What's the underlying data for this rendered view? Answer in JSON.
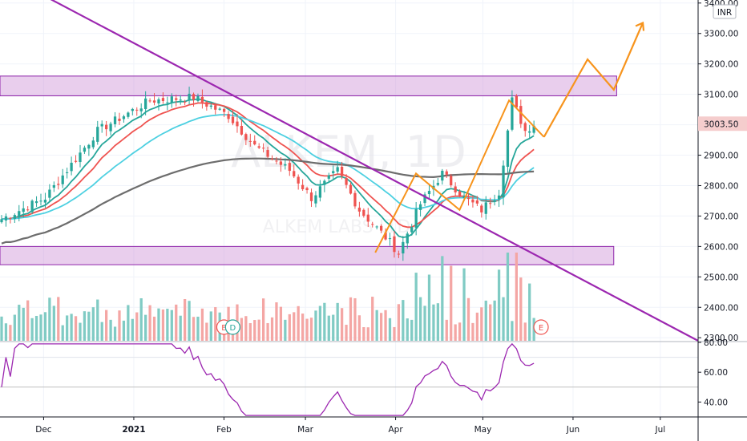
{
  "chart_data": {
    "type": "candlestick",
    "watermark": "ALKEM, 1D",
    "watermark_sub": "ALKEM LABS LTD",
    "currency": "INR",
    "last_price": "3003.50",
    "last_price_value": 3003.5,
    "price_axis": {
      "ylim": [
        2290,
        3410
      ],
      "ticks": [
        2300,
        2400,
        2500,
        2600,
        2700,
        2800,
        2900,
        3000,
        3100,
        3200,
        3300,
        3400
      ]
    },
    "price_tick_labels": [
      "2300.00",
      "2400.00",
      "2500.00",
      "2600.00",
      "2700.00",
      "2800.00",
      "2900.00",
      "3000.00",
      "3100.00",
      "3200.00",
      "3300.00",
      "3400.00"
    ],
    "rsi_axis": {
      "ylim": [
        30,
        80
      ],
      "ticks": [
        40,
        60,
        80
      ]
    },
    "rsi_tick_labels": [
      "40.00",
      "60.00",
      "80.00"
    ],
    "time_labels": [
      "Dec",
      "2021",
      "Feb",
      "Mar",
      "Apr",
      "May",
      "Jun",
      "Jul"
    ],
    "time_label_dates": [
      "2020-12-01",
      "2021-01-01",
      "2021-02-01",
      "2021-03-01",
      "2021-04-01",
      "2021-05-01",
      "2021-06-01",
      "2021-07-01"
    ],
    "date_range": [
      "2020-11-16",
      "2021-07-14"
    ],
    "candle_count": 123,
    "key_prices": {
      "start_close": 2690,
      "jan_high": 3150,
      "mar_low": 2580,
      "apr_swing_high": 2840,
      "apr_pullback": 2720,
      "may_high": 3080,
      "last_close": 3003.5
    },
    "zones": [
      {
        "name": "resistance",
        "low": 3095,
        "high": 3160,
        "start": "2020-11-16",
        "end": "2021-06-16",
        "color": "#ce93d8"
      },
      {
        "name": "support",
        "low": 2540,
        "high": 2600,
        "start": "2020-11-16",
        "end": "2021-06-15",
        "color": "#ce93d8"
      }
    ],
    "trendline": {
      "start": {
        "date": "2020-11-26",
        "price": 3450
      },
      "end": {
        "date": "2021-07-14",
        "price": 2290
      },
      "color": "#9c27b0"
    },
    "projection": {
      "color": "#f7941d",
      "points": [
        {
          "date": "2021-05-22",
          "price": 2960
        },
        {
          "date": "2021-06-06",
          "price": 3215
        },
        {
          "date": "2021-06-15",
          "price": 3115
        },
        {
          "date": "2021-06-25",
          "price": 3335
        }
      ]
    },
    "pattern_lines": {
      "color": "#f7941d",
      "segments": [
        [
          {
            "date": "2021-03-25",
            "price": 2580
          },
          {
            "date": "2021-04-08",
            "price": 2840
          },
          {
            "date": "2021-04-23",
            "price": 2720
          },
          {
            "date": "2021-05-10",
            "price": 3080
          },
          {
            "date": "2021-05-22",
            "price": 2960
          }
        ]
      ]
    },
    "moving_averages": [
      {
        "color": "#26a69a",
        "key": "ema_fast"
      },
      {
        "color": "#ef5350",
        "key": "ema_mid"
      },
      {
        "color": "#4dd0e1",
        "key": "ema_slow"
      },
      {
        "color": "#6d6d6d",
        "key": "ma_long"
      }
    ],
    "volume_labels": [
      {
        "text": "E",
        "date": "2021-02-01"
      },
      {
        "text": "D",
        "date": "2021-02-04"
      },
      {
        "text": "E",
        "date": "2021-05-21"
      }
    ],
    "rsi_levels": [
      70,
      50,
      30
    ],
    "colors": {
      "up": "#26a69a",
      "down": "#ef5350",
      "rsi": "#9c27b0",
      "vol_up": "#80cbc4",
      "vol_down": "#f4a6a4"
    }
  }
}
